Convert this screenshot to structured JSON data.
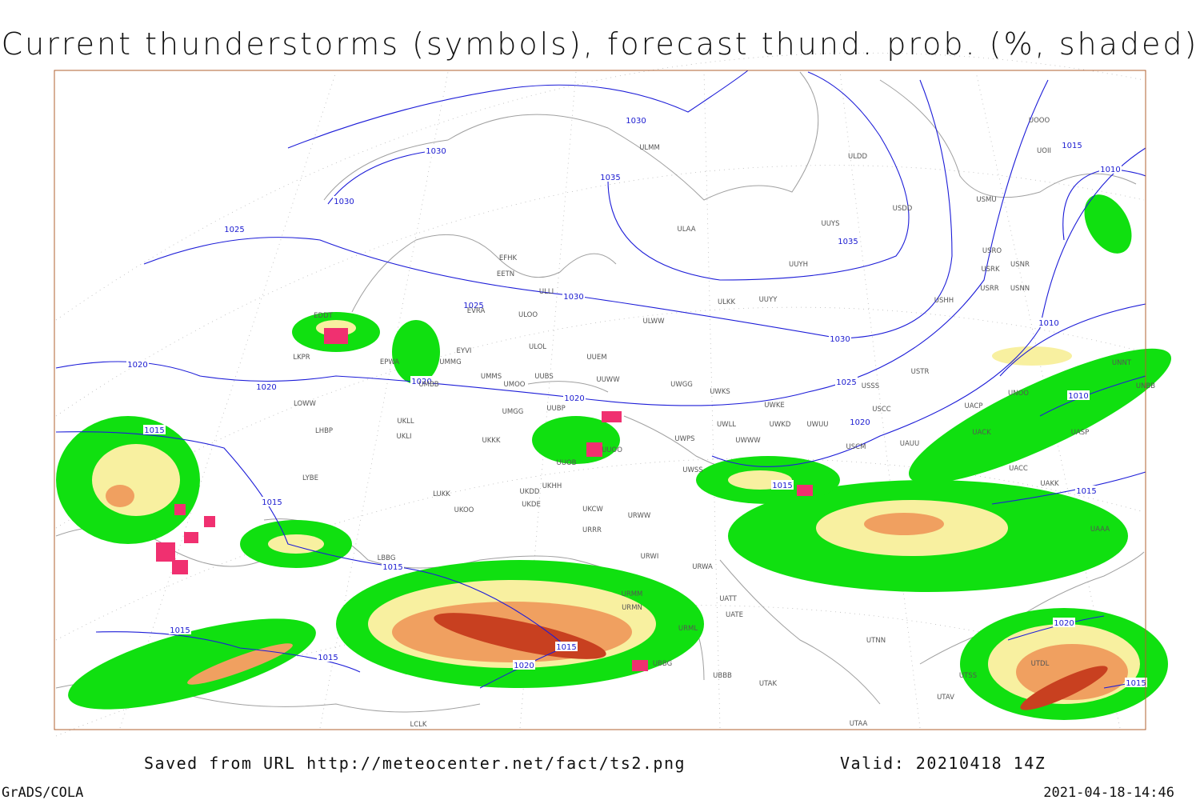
{
  "header": {
    "title": "Current thunderstorms (symbols), forecast thund. prob. (%, shaded)"
  },
  "isobar_labels": [
    "1030",
    "1030",
    "1030",
    "1025",
    "1035",
    "1035",
    "1030",
    "1025",
    "1030",
    "1020",
    "1020",
    "1020",
    "1020",
    "1025",
    "1020",
    "1015",
    "1015",
    "1015",
    "1015",
    "1015",
    "1015",
    "1020",
    "1015",
    "1015",
    "1010",
    "1010",
    "1010",
    "1015",
    "1020",
    "1015"
  ],
  "stations": [
    "ULMM",
    "ULDD",
    "ULAA",
    "USDD",
    "USMU",
    "UUYS",
    "UUYH",
    "USRO",
    "USRK",
    "USNR",
    "USRR",
    "USNN",
    "USHH",
    "ULKK",
    "UUYY",
    "ULWW",
    "EFHK",
    "EETN",
    "ULLI",
    "EVRA",
    "ULOO",
    "ULOL",
    "UUEM",
    "EYVI",
    "UMMG",
    "EPWA",
    "UMBB",
    "UMMS",
    "UMOO",
    "UUBS",
    "UUWW",
    "UWGG",
    "UWKS",
    "USTR",
    "UNNT",
    "UNBB",
    "UNOO",
    "USSS",
    "UWKE",
    "USCC",
    "UACP",
    "LKPR",
    "EDDT",
    "LOWW",
    "LHBP",
    "UKLL",
    "UKLI",
    "UMGG",
    "UUBP",
    "UKKK",
    "UUOO",
    "UUOB",
    "LYBE",
    "LUKK",
    "UKHH",
    "UKDD",
    "UKDE",
    "UKOO",
    "UKCW",
    "URRR",
    "URWW",
    "URWI",
    "URWA",
    "LBBG",
    "UWWW",
    "UWLL",
    "UWKD",
    "UWUU",
    "UWPS",
    "UWSS",
    "USCM",
    "UAUU",
    "UACK",
    "UASP",
    "UACC",
    "UAKK",
    "UAAA",
    "UATT",
    "UATE",
    "URMM",
    "URMN",
    "URML",
    "UBBB",
    "UTAK",
    "UTNN",
    "UBBG",
    "UTDL",
    "UTSS",
    "UTAV",
    "UTAA",
    "LCLK",
    "UOOO",
    "UOII"
  ],
  "footer": {
    "source": "Saved from URL http://meteocenter.net/fact/ts2.png",
    "valid": "Valid: 20210418 14Z",
    "software": "GrADS/COLA",
    "timestamp": "2021-04-18-14:46"
  }
}
